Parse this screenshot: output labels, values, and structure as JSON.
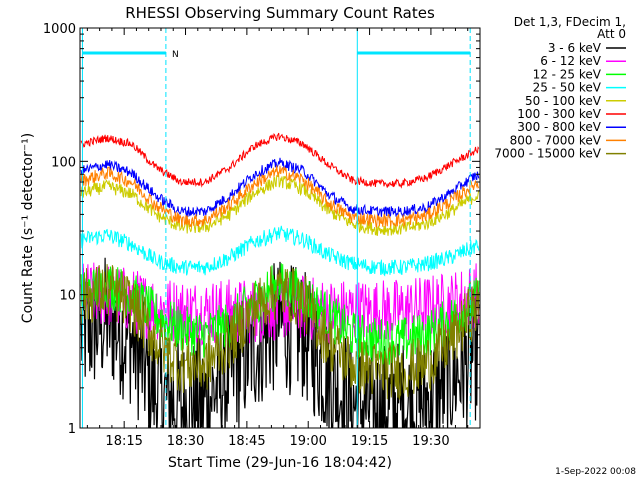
{
  "chart_data": {
    "type": "line",
    "title": "RHESSI Observing Summary Count Rates",
    "xlabel": "Start Time (29-Jun-16 18:04:42)",
    "ylabel": "Count Rate (s⁻¹ detector⁻¹)",
    "yscale": "log",
    "ylim": [
      1,
      1000
    ],
    "xlim_minutes": [
      18.07,
      19.7
    ],
    "xticks": [
      "18:15",
      "18:30",
      "18:45",
      "19:00",
      "19:15",
      "19:30"
    ],
    "xtick_minutes": [
      18.25,
      18.5,
      18.75,
      19.0,
      19.25,
      19.5
    ],
    "yticks": [
      "1",
      "10",
      "100",
      "1000"
    ],
    "ytick_values": [
      1,
      10,
      100,
      1000
    ],
    "legend_header": [
      "Det 1,3, FDecim 1,",
      "Att 0"
    ],
    "legend_position": "right",
    "series": [
      {
        "name": "3 - 6 keV",
        "color": "#000000",
        "x": [
          18.08,
          18.18,
          18.28,
          18.38,
          18.48,
          18.58,
          18.68,
          18.78,
          18.88,
          18.98,
          19.08,
          19.18,
          19.28,
          19.38,
          19.48,
          19.58,
          19.68
        ],
        "values": [
          5,
          6.5,
          4.5,
          1.8,
          1.5,
          1.6,
          2.5,
          4,
          6,
          5,
          2.5,
          1.5,
          1.4,
          1.5,
          1.6,
          2.3,
          3.5
        ]
      },
      {
        "name": "6 - 12 keV",
        "color": "#ff00ff",
        "x": [
          18.08,
          18.18,
          18.28,
          18.38,
          18.48,
          18.58,
          18.68,
          18.78,
          18.88,
          18.98,
          19.08,
          19.18,
          19.28,
          19.38,
          19.48,
          19.58,
          19.68
        ],
        "values": [
          10,
          10,
          9,
          8,
          7.5,
          7.5,
          7.5,
          7.5,
          8,
          8,
          7.5,
          7.5,
          7.5,
          7.5,
          8,
          8.5,
          10
        ]
      },
      {
        "name": "12 - 25 keV",
        "color": "#00ff00",
        "x": [
          18.08,
          18.18,
          18.28,
          18.38,
          18.48,
          18.58,
          18.68,
          18.78,
          18.88,
          18.98,
          19.08,
          19.18,
          19.28,
          19.38,
          19.48,
          19.58,
          19.68
        ],
        "values": [
          10,
          12,
          10,
          7,
          5.5,
          5,
          6,
          9,
          12,
          10,
          7,
          5,
          4.5,
          4.5,
          5,
          6.5,
          9
        ]
      },
      {
        "name": "25 - 50 keV",
        "color": "#00ffff",
        "x": [
          18.08,
          18.18,
          18.28,
          18.38,
          18.48,
          18.58,
          18.68,
          18.78,
          18.88,
          18.98,
          19.08,
          19.18,
          19.28,
          19.38,
          19.48,
          19.58,
          19.68
        ],
        "values": [
          26,
          28,
          24,
          18,
          16,
          16,
          19,
          25,
          29,
          26,
          20,
          17,
          16,
          16,
          17,
          19,
          23
        ]
      },
      {
        "name": "50 - 100 keV",
        "color": "#cccc00",
        "x": [
          18.08,
          18.18,
          18.28,
          18.38,
          18.48,
          18.58,
          18.68,
          18.78,
          18.88,
          18.98,
          19.08,
          19.18,
          19.28,
          19.38,
          19.48,
          19.58,
          19.68
        ],
        "values": [
          58,
          65,
          57,
          40,
          32,
          32,
          40,
          58,
          72,
          62,
          43,
          34,
          31,
          31,
          34,
          42,
          55
        ]
      },
      {
        "name": "100 - 300 keV",
        "color": "#ff0000",
        "x": [
          18.08,
          18.18,
          18.28,
          18.38,
          18.48,
          18.58,
          18.68,
          18.78,
          18.88,
          18.98,
          19.08,
          19.18,
          19.28,
          19.38,
          19.48,
          19.58,
          19.68
        ],
        "values": [
          135,
          150,
          135,
          90,
          70,
          70,
          90,
          130,
          155,
          135,
          95,
          72,
          68,
          68,
          75,
          95,
          120
        ]
      },
      {
        "name": "300 - 800 keV",
        "color": "#0000ff",
        "x": [
          18.08,
          18.18,
          18.28,
          18.38,
          18.48,
          18.58,
          18.68,
          18.78,
          18.88,
          18.98,
          19.08,
          19.18,
          19.28,
          19.38,
          19.48,
          19.58,
          19.68
        ],
        "values": [
          85,
          95,
          82,
          55,
          42,
          42,
          55,
          80,
          98,
          85,
          57,
          44,
          42,
          42,
          45,
          58,
          78
        ]
      },
      {
        "name": "800 - 7000 keV",
        "color": "#ff8000",
        "x": [
          18.08,
          18.18,
          18.28,
          18.38,
          18.48,
          18.58,
          18.68,
          18.78,
          18.88,
          18.98,
          19.08,
          19.18,
          19.28,
          19.38,
          19.48,
          19.58,
          19.68
        ],
        "values": [
          72,
          82,
          70,
          47,
          36,
          36,
          47,
          68,
          85,
          73,
          49,
          38,
          36,
          36,
          39,
          50,
          68
        ]
      },
      {
        "name": "7000 - 15000 keV",
        "color": "#808000",
        "x": [
          18.08,
          18.18,
          18.28,
          18.38,
          18.48,
          18.58,
          18.68,
          18.78,
          18.88,
          18.98,
          19.08,
          19.18,
          19.28,
          19.38,
          19.48,
          19.58,
          19.68
        ],
        "values": [
          9.5,
          11,
          8.5,
          4.5,
          3,
          3,
          4.5,
          8,
          11,
          9,
          4.5,
          3,
          2.7,
          2.7,
          3,
          4.5,
          8
        ]
      }
    ],
    "markers": {
      "solid_lines_minutes": [
        18.08,
        19.2
      ],
      "dashed_lines_minutes": [
        18.42,
        19.66
      ],
      "bars": [
        [
          18.08,
          18.42
        ],
        [
          19.2,
          19.66
        ]
      ],
      "bar_level": 650,
      "bar_label": "N",
      "bar_label_at_minutes": 18.445
    }
  },
  "footer": {
    "timestamp": "1-Sep-2022 00:08"
  }
}
